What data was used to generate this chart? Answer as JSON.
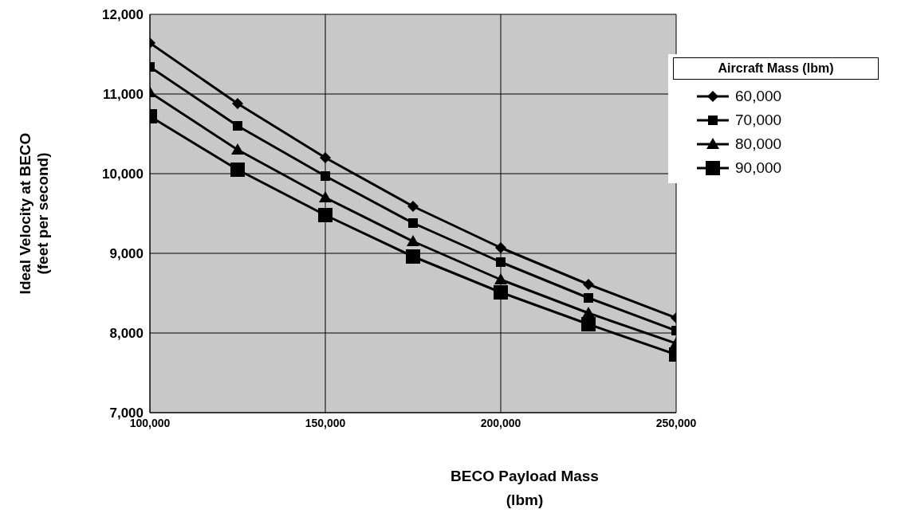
{
  "chart_data": {
    "type": "line",
    "xlabel": "BECO Payload Mass\n(lbm)",
    "ylabel": "Ideal Velocity at BECO\n(feet per second)",
    "legend_title": "Aircraft Mass (lbm)",
    "x": [
      100000,
      125000,
      150000,
      175000,
      200000,
      225000,
      250000
    ],
    "series": [
      {
        "name": "60,000",
        "color": "#000000",
        "marker": "diamond",
        "values": [
          11640,
          10880,
          10200,
          9590,
          9070,
          8610,
          8190
        ]
      },
      {
        "name": "70,000",
        "color": "#000000",
        "marker": "square",
        "values": [
          11340,
          10600,
          9970,
          9380,
          8890,
          8440,
          8030
        ]
      },
      {
        "name": "80,000",
        "color": "#000000",
        "marker": "triangle",
        "values": [
          11020,
          10300,
          9700,
          9150,
          8670,
          8250,
          7870
        ]
      },
      {
        "name": "90,000",
        "color": "#000000",
        "marker": "square",
        "values": [
          10720,
          10050,
          9480,
          8960,
          8510,
          8110,
          7730
        ]
      }
    ],
    "xlim": [
      100000,
      250000
    ],
    "xticks": [
      {
        "value": 100000,
        "label": "100,000"
      },
      {
        "value": 150000,
        "label": "150,000"
      },
      {
        "value": 200000,
        "label": "200,000"
      },
      {
        "value": 250000,
        "label": "250,000"
      }
    ],
    "ylim": [
      7000,
      12000
    ],
    "yticks": [
      {
        "value": 7000,
        "label": "7,000"
      },
      {
        "value": 8000,
        "label": "8,000"
      },
      {
        "value": 9000,
        "label": "9,000"
      },
      {
        "value": 10000,
        "label": "10,000"
      },
      {
        "value": 11000,
        "label": "11,000"
      },
      {
        "value": 12000,
        "label": "12,000"
      }
    ],
    "grid": true,
    "legend": "top right",
    "line_style": "solid"
  }
}
